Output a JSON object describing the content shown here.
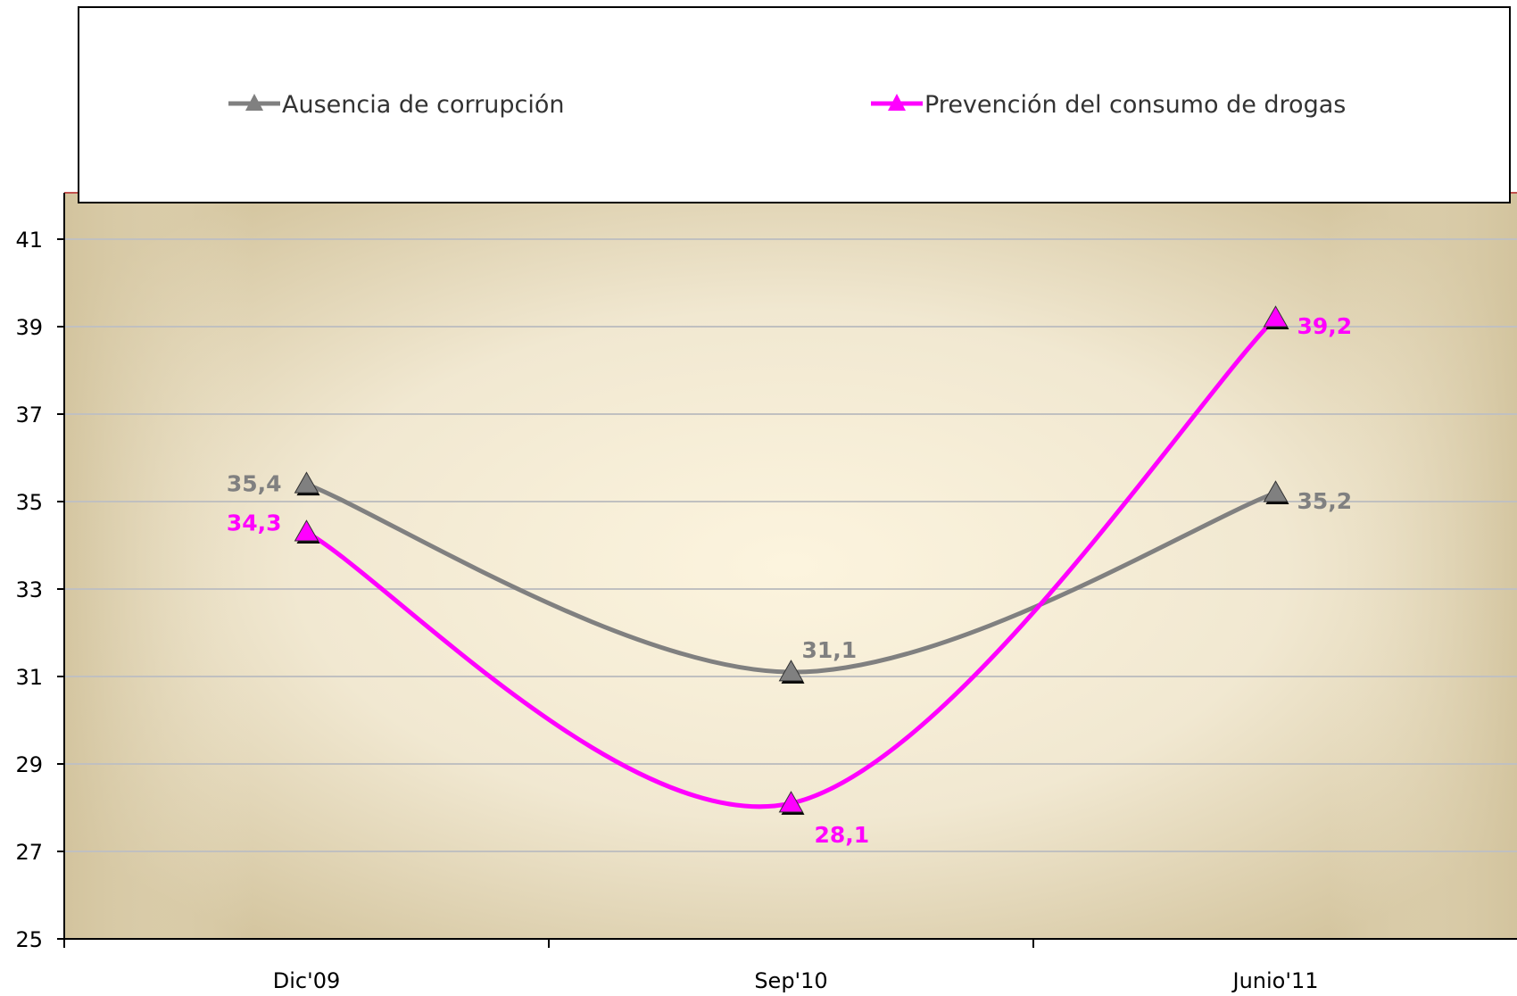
{
  "chart_data": {
    "type": "line",
    "categories": [
      "Dic'09",
      "Sep'10",
      "Junio'11"
    ],
    "series": [
      {
        "name": "Ausencia de corrupción",
        "values": [
          35.4,
          31.1,
          35.2
        ],
        "labels": [
          "35,4",
          "31,1",
          "35,2"
        ],
        "color": "#808080"
      },
      {
        "name": "Prevención del consumo de drogas",
        "values": [
          34.3,
          28.1,
          39.2
        ],
        "labels": [
          "34,3",
          "28,1",
          "39,2"
        ],
        "color": "#ff00ff"
      }
    ],
    "ylim": [
      25,
      42
    ],
    "yticks": [
      25,
      27,
      29,
      31,
      33,
      35,
      37,
      39,
      41
    ],
    "grid": true,
    "legend_position": "top",
    "marker": "triangle",
    "smooth": true,
    "colors": {
      "background_edge": "#d4c59f",
      "background_center": "#fbf3dc",
      "gridline": "#c0c0c0"
    }
  }
}
